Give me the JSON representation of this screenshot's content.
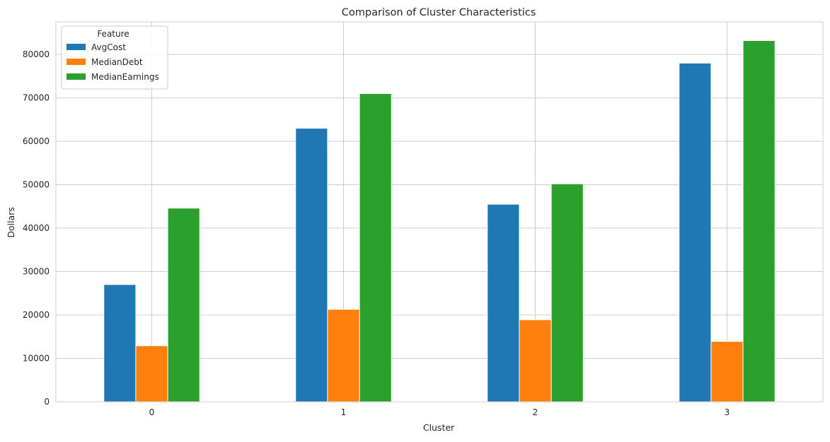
{
  "chart_data": {
    "type": "bar",
    "title": "Comparison of Cluster Characteristics",
    "xlabel": "Cluster",
    "ylabel": "Dollars",
    "categories": [
      "0",
      "1",
      "2",
      "3"
    ],
    "series": [
      {
        "name": "AvgCost",
        "color": "#1f77b4",
        "values": [
          27000,
          63000,
          45500,
          78000
        ]
      },
      {
        "name": "MedianDebt",
        "color": "#ff7f0e",
        "values": [
          12900,
          21300,
          18900,
          13900
        ]
      },
      {
        "name": "MedianEarnings",
        "color": "#2ca02c",
        "values": [
          44600,
          71000,
          50200,
          83200
        ]
      }
    ],
    "ylim": [
      0,
      87500
    ],
    "yticks": [
      0,
      10000,
      20000,
      30000,
      40000,
      50000,
      60000,
      70000,
      80000
    ],
    "grid": true,
    "legend": {
      "title": "Feature",
      "position": "upper-left"
    }
  }
}
